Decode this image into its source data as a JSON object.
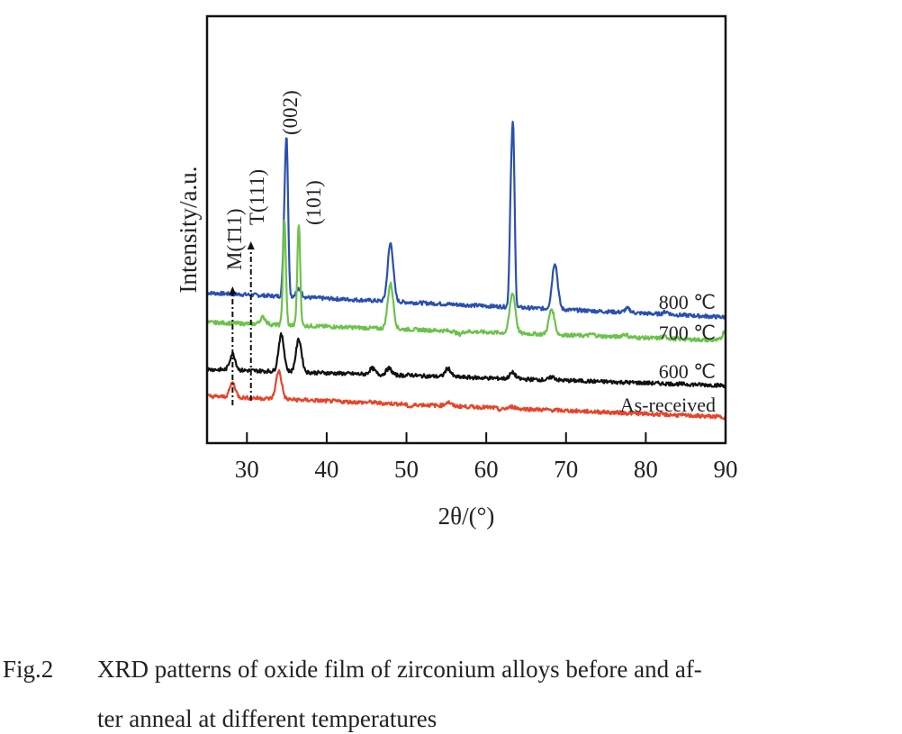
{
  "chart_data": {
    "type": "line",
    "title": "",
    "xlabel": "2θ/(°)",
    "ylabel": "Intensity/a.u.",
    "xlim": [
      25,
      90
    ],
    "ylim": [
      0,
      100
    ],
    "xticks": [
      30,
      40,
      50,
      60,
      70,
      80,
      90
    ],
    "grid": false,
    "series": [
      {
        "name": "800 ℃",
        "color": "#2a4fb0",
        "baseline": [
          35.2,
          29.5
        ],
        "peaks": [
          [
            35.0,
            67.5
          ],
          [
            34.7,
            50
          ],
          [
            36.5,
            36
          ],
          [
            48.0,
            46.8
          ],
          [
            63.4,
            67.5
          ],
          [
            63.1,
            55
          ],
          [
            68.6,
            42.2
          ],
          [
            77.7,
            31.5
          ],
          [
            82.5,
            30.8
          ]
        ]
      },
      {
        "name": "700 ℃",
        "color": "#6cc24a",
        "baseline": [
          28.3,
          24.0
        ],
        "peaks": [
          [
            32.0,
            29.5
          ],
          [
            34.7,
            52.0
          ],
          [
            36.5,
            51.5
          ],
          [
            48.0,
            37.3
          ],
          [
            56.6,
            25.5
          ],
          [
            63.3,
            35.2
          ],
          [
            68.2,
            31.4
          ],
          [
            73.3,
            25.5
          ],
          [
            77.3,
            25.5
          ],
          [
            82.3,
            25.0
          ],
          [
            90.0,
            26.5
          ]
        ]
      },
      {
        "name": "600 ℃",
        "color": "#111111",
        "baseline": [
          17.3,
          13.5
        ],
        "peaks": [
          [
            28.2,
            20.9
          ],
          [
            34.3,
            25.3
          ],
          [
            36.5,
            24.3
          ],
          [
            45.7,
            17.5
          ],
          [
            47.8,
            17.5
          ],
          [
            50.5,
            16.0
          ],
          [
            55.2,
            17.5
          ],
          [
            63.3,
            16.5
          ],
          [
            68.3,
            15.5
          ]
        ]
      },
      {
        "name": "As-received",
        "color": "#e8442a",
        "baseline": [
          11.0,
          6.1
        ],
        "peaks": [
          [
            28.2,
            14.1
          ],
          [
            34.0,
            16.9
          ],
          [
            45.5,
            9.6
          ],
          [
            50.5,
            8.5
          ],
          [
            55.2,
            9.6
          ],
          [
            61.8,
            7.8
          ],
          [
            63.3,
            8.5
          ]
        ]
      }
    ],
    "annotations": [
      {
        "text": "M(1̄11)",
        "x": 28.2,
        "arrow": true
      },
      {
        "text": "T(111)",
        "x": 30.5,
        "arrow": true
      },
      {
        "text": "(002)",
        "x": 35.0
      },
      {
        "text": "(101)",
        "x": 36.5
      }
    ]
  },
  "caption": {
    "label": "Fig.2",
    "line1": "XRD patterns of oxide film of zirconium alloys before and af-",
    "line2": "ter anneal at different temperatures"
  }
}
